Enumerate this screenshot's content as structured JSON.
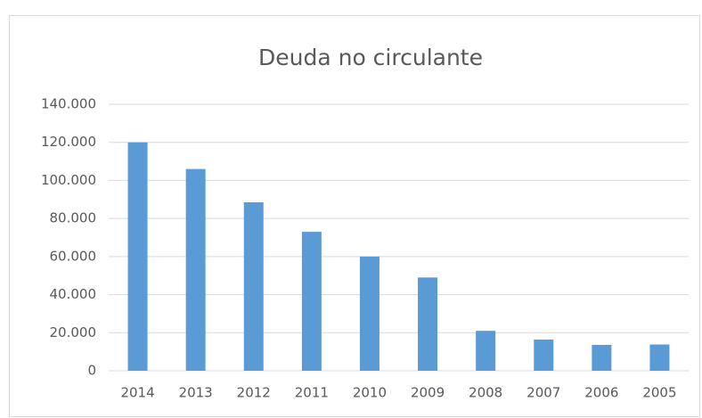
{
  "chart_data": {
    "type": "bar",
    "title": "Deuda no circulante",
    "categories": [
      "2014",
      "2013",
      "2012",
      "2011",
      "2010",
      "2009",
      "2008",
      "2007",
      "2006",
      "2005"
    ],
    "values": [
      120000,
      106000,
      88500,
      73000,
      60000,
      49000,
      21000,
      16400,
      13600,
      13800
    ],
    "color": "#5b9bd5",
    "ylim": [
      0,
      140000
    ],
    "yticks": [
      0,
      {
        "value": 20000,
        "label": "20.000"
      },
      {
        "value": 40000,
        "label": "40.000"
      },
      {
        "value": 60000,
        "label": "60.000"
      },
      {
        "value": 80000,
        "label": "80.000"
      },
      {
        "value": 100000,
        "label": "100.000"
      },
      {
        "value": 120000,
        "label": "120.000"
      },
      {
        "value": 140000,
        "label": "140.000"
      }
    ],
    "grid": true
  }
}
